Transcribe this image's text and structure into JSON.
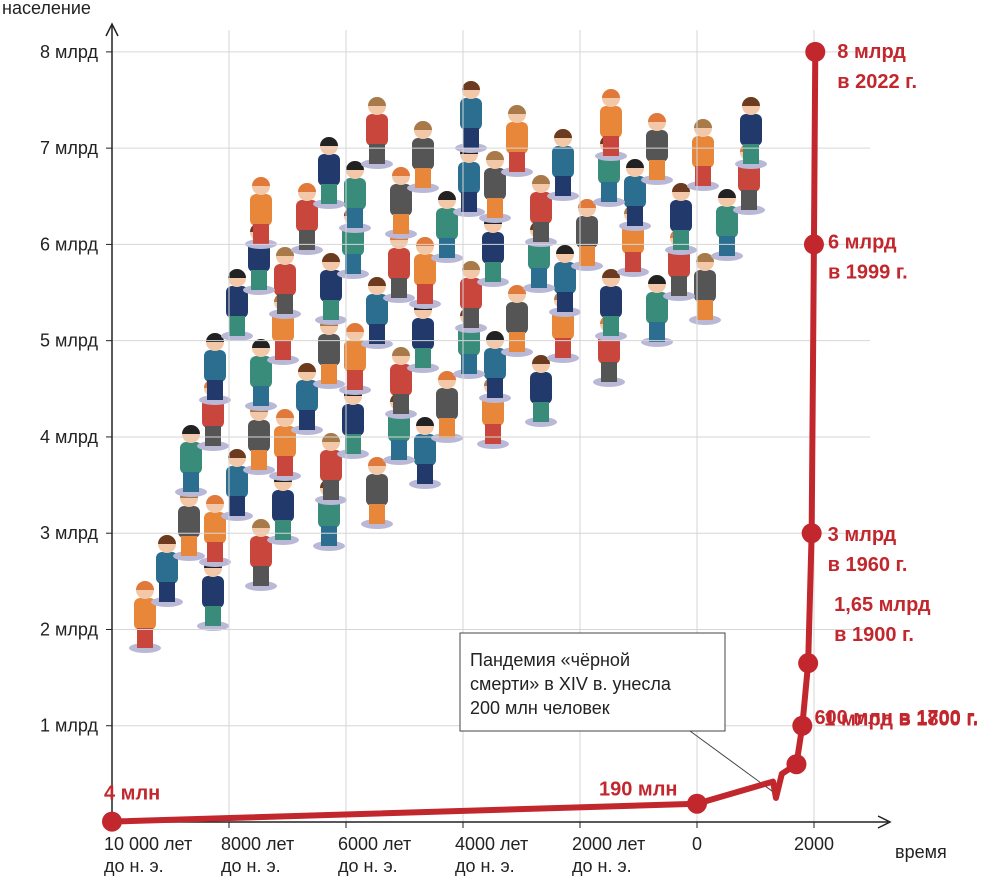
{
  "chart_data": {
    "type": "line",
    "y_label": "население",
    "x_label": "время",
    "x": [
      -10000,
      0,
      1300,
      1350,
      1450,
      1700,
      1800,
      1900,
      1960,
      1999,
      2022
    ],
    "series": [
      {
        "color": "#c1272d",
        "values": [
          0.004,
          0.19,
          0.42,
          0.25,
          0.5,
          0.6,
          1,
          1.65,
          3,
          6,
          8
        ],
        "value_labels": [
          "4 млн",
          "190 млн",
          null,
          null,
          null,
          "600 млн в 1700 г.",
          "1 млрд в 1800 г.",
          "1,65 млрд\nв 1900 г.",
          "3 млрд\nв 1960 г.",
          "6 млрд\nв 1999 г.",
          "8 млрд\nв 2022 г."
        ]
      }
    ],
    "xlim": [
      -10000,
      3100
    ],
    "xticks": [
      {
        "value": -10000,
        "label": "10 000 лет\nдо н. э."
      },
      {
        "value": -8000,
        "label": "8000 лет\nдо н. э."
      },
      {
        "value": -6000,
        "label": "6000 лет\nдо н. э."
      },
      {
        "value": -4000,
        "label": "4000 лет\nдо н. э."
      },
      {
        "value": -2000,
        "label": "2000 лет\nдо н. э."
      },
      0,
      2000
    ],
    "ylim": [
      0,
      8.3
    ],
    "yticks": [
      {
        "value": 1,
        "label": "1 млрд"
      },
      {
        "value": 2,
        "label": "2 млрд"
      },
      {
        "value": 3,
        "label": "3 млрд"
      },
      {
        "value": 4,
        "label": "4 млрд"
      },
      {
        "value": 5,
        "label": "5 млрд"
      },
      {
        "value": 6,
        "label": "6 млрд"
      },
      {
        "value": 7,
        "label": "7 млрд"
      },
      {
        "value": 8,
        "label": "8 млрд"
      }
    ],
    "grid": true,
    "annotations": [
      {
        "text": "Пандемия «чёрной\nсмерти» в XIV в. унесла\n200 млн человек",
        "x": 1350,
        "y": 0.25
      }
    ]
  }
}
